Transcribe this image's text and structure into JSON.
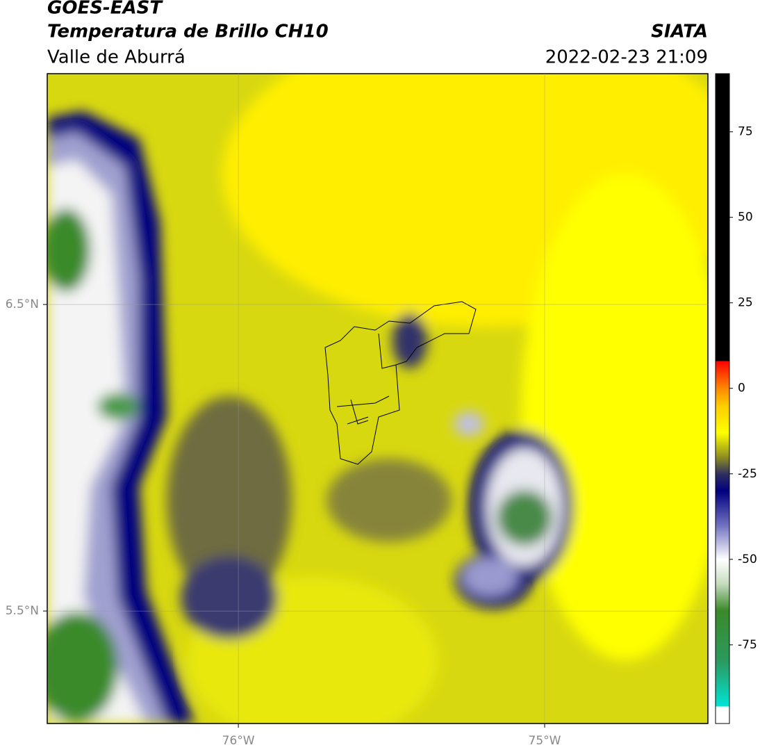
{
  "header": {
    "title": "GOES-EAST",
    "subtitle": "Temperatura de Brillo CH10",
    "source": "SIATA",
    "region": "Valle de Aburrá",
    "datetime": "2022-02-23 21:09"
  },
  "map": {
    "lonlim": [
      -76.624,
      -74.467
    ],
    "latlim": [
      5.133,
      7.253
    ],
    "lonticks": [
      {
        "value": -76,
        "label": "76°W"
      },
      {
        "value": -75,
        "label": "75°W"
      }
    ],
    "latticks": [
      {
        "value": 6.5,
        "label": "6.5°N"
      },
      {
        "value": 5.5,
        "label": "5.5°N"
      }
    ],
    "grid": true
  },
  "colorbar": {
    "lim": [
      -98,
      92
    ],
    "ticks": [
      75,
      50,
      25,
      0,
      -25,
      -50,
      -75
    ],
    "stops": [
      {
        "value": -98,
        "color": "#ffffff"
      },
      {
        "value": -93,
        "color": "#ffffff"
      },
      {
        "value": -93,
        "color": "#00e5d5"
      },
      {
        "value": -80,
        "color": "#2a9a60"
      },
      {
        "value": -65,
        "color": "#3a8a2a"
      },
      {
        "value": -57,
        "color": "#c8dcc0"
      },
      {
        "value": -50,
        "color": "#ffffff"
      },
      {
        "value": -40,
        "color": "#7070c0"
      },
      {
        "value": -30,
        "color": "#000080"
      },
      {
        "value": -25,
        "color": "#303060"
      },
      {
        "value": -20,
        "color": "#909020"
      },
      {
        "value": -13,
        "color": "#ffff00"
      },
      {
        "value": -5,
        "color": "#ffcc00"
      },
      {
        "value": 0,
        "color": "#ff8800"
      },
      {
        "value": 8,
        "color": "#ff0000"
      },
      {
        "value": 8,
        "color": "#000000"
      },
      {
        "value": 92,
        "color": "#000000"
      }
    ]
  }
}
